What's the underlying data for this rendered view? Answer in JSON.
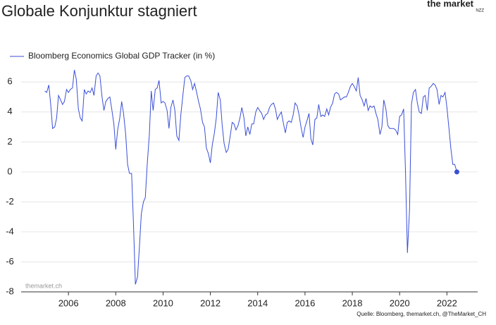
{
  "chart_data": {
    "type": "line",
    "title": "Globale Konjunktur stagniert",
    "logo": "the market",
    "logo_sub": "NZZ",
    "watermark": "themarket.ch",
    "source": "Quelle: Bloomberg, themarket.ch, @TheMarket_CH",
    "xlim": [
      2004,
      2023.3
    ],
    "xticks": [
      2006,
      2008,
      2010,
      2012,
      2014,
      2016,
      2018,
      2020,
      2022
    ],
    "ylim": [
      -8,
      7
    ],
    "yticks": [
      -8,
      -6,
      -4,
      -2,
      0,
      2,
      4,
      6
    ],
    "grid": true,
    "legend": "top-left",
    "x": [
      2005.0,
      2005.08,
      2005.17,
      2005.25,
      2005.33,
      2005.42,
      2005.5,
      2005.58,
      2005.67,
      2005.75,
      2005.83,
      2005.92,
      2006.0,
      2006.08,
      2006.17,
      2006.25,
      2006.33,
      2006.42,
      2006.5,
      2006.58,
      2006.67,
      2006.75,
      2006.83,
      2006.92,
      2007.0,
      2007.08,
      2007.17,
      2007.25,
      2007.33,
      2007.42,
      2007.5,
      2007.58,
      2007.67,
      2007.75,
      2007.83,
      2007.92,
      2008.0,
      2008.08,
      2008.17,
      2008.25,
      2008.33,
      2008.42,
      2008.5,
      2008.58,
      2008.67,
      2008.75,
      2008.83,
      2008.92,
      2009.0,
      2009.08,
      2009.17,
      2009.25,
      2009.33,
      2009.42,
      2009.5,
      2009.58,
      2009.67,
      2009.75,
      2009.83,
      2009.92,
      2010.0,
      2010.08,
      2010.17,
      2010.25,
      2010.33,
      2010.42,
      2010.5,
      2010.58,
      2010.67,
      2010.75,
      2010.83,
      2010.92,
      2011.0,
      2011.08,
      2011.17,
      2011.25,
      2011.33,
      2011.42,
      2011.5,
      2011.58,
      2011.67,
      2011.75,
      2011.83,
      2011.92,
      2012.0,
      2012.08,
      2012.17,
      2012.25,
      2012.33,
      2012.42,
      2012.5,
      2012.58,
      2012.67,
      2012.75,
      2012.83,
      2012.92,
      2013.0,
      2013.08,
      2013.17,
      2013.25,
      2013.33,
      2013.42,
      2013.5,
      2013.58,
      2013.67,
      2013.75,
      2013.83,
      2013.92,
      2014.0,
      2014.08,
      2014.17,
      2014.25,
      2014.33,
      2014.42,
      2014.5,
      2014.58,
      2014.67,
      2014.75,
      2014.83,
      2014.92,
      2015.0,
      2015.08,
      2015.17,
      2015.25,
      2015.33,
      2015.42,
      2015.5,
      2015.58,
      2015.67,
      2015.75,
      2015.83,
      2015.92,
      2016.0,
      2016.08,
      2016.17,
      2016.25,
      2016.33,
      2016.42,
      2016.5,
      2016.58,
      2016.67,
      2016.75,
      2016.83,
      2016.92,
      2017.0,
      2017.08,
      2017.17,
      2017.25,
      2017.33,
      2017.42,
      2017.5,
      2017.58,
      2017.67,
      2017.75,
      2017.83,
      2017.92,
      2018.0,
      2018.08,
      2018.17,
      2018.25,
      2018.33,
      2018.42,
      2018.5,
      2018.58,
      2018.67,
      2018.75,
      2018.83,
      2018.92,
      2019.0,
      2019.08,
      2019.17,
      2019.25,
      2019.33,
      2019.42,
      2019.5,
      2019.58,
      2019.67,
      2019.75,
      2019.83,
      2019.92,
      2020.0,
      2020.08,
      2020.17,
      2020.25,
      2020.33,
      2020.42,
      2020.5,
      2020.58,
      2020.67,
      2020.75,
      2020.83,
      2020.92,
      2021.0,
      2021.08,
      2021.17,
      2021.25,
      2021.33,
      2021.42,
      2021.5,
      2021.58,
      2021.67,
      2021.75,
      2021.83,
      2021.92,
      2022.0,
      2022.08,
      2022.17,
      2022.25,
      2022.33,
      2022.42
    ],
    "series": [
      {
        "name": "Bloomberg Economics Global GDP Tracker (in %)",
        "color": "#3a4fd8",
        "values": [
          5.4,
          5.3,
          5.8,
          4.5,
          2.9,
          3.0,
          3.6,
          5.1,
          4.8,
          4.5,
          4.7,
          5.5,
          5.3,
          5.5,
          5.6,
          6.8,
          6.2,
          4.2,
          3.6,
          3.4,
          5.5,
          5.2,
          5.4,
          5.3,
          5.6,
          5.1,
          6.4,
          6.6,
          6.4,
          5.0,
          4.1,
          4.7,
          4.9,
          5.0,
          4.2,
          3.2,
          1.5,
          2.8,
          3.6,
          4.7,
          3.9,
          2.5,
          0.5,
          -0.1,
          -0.1,
          -3.5,
          -7.5,
          -7.0,
          -5.0,
          -2.8,
          -2.0,
          -1.7,
          0.5,
          2.5,
          5.4,
          4.1,
          5.5,
          5.6,
          6.1,
          4.6,
          4.7,
          4.6,
          4.1,
          2.9,
          4.3,
          4.8,
          4.1,
          2.4,
          2.1,
          3.8,
          5.0,
          6.3,
          6.4,
          6.4,
          6.1,
          5.5,
          5.9,
          5.3,
          4.7,
          4.2,
          3.3,
          3.0,
          1.6,
          1.2,
          0.6,
          1.8,
          2.6,
          3.6,
          5.3,
          4.8,
          3.1,
          1.9,
          1.3,
          1.5,
          2.3,
          3.3,
          3.2,
          2.8,
          3.1,
          3.6,
          4.3,
          3.6,
          2.4,
          3.0,
          2.5,
          3.2,
          3.2,
          4.0,
          4.3,
          4.1,
          3.9,
          3.5,
          3.8,
          3.9,
          4.3,
          4.5,
          4.6,
          4.2,
          3.5,
          3.8,
          4.0,
          3.3,
          2.6,
          3.3,
          3.4,
          3.3,
          3.8,
          4.6,
          4.4,
          3.8,
          3.0,
          2.3,
          3.0,
          3.4,
          3.9,
          2.2,
          1.8,
          3.5,
          3.6,
          4.5,
          3.7,
          3.8,
          3.7,
          4.2,
          3.8,
          4.3,
          4.6,
          5.2,
          5.3,
          5.2,
          4.8,
          4.9,
          5.0,
          5.0,
          5.3,
          5.7,
          5.9,
          5.7,
          5.4,
          6.3,
          5.1,
          4.8,
          4.4,
          4.9,
          4.1,
          4.4,
          4.3,
          4.4,
          3.9,
          3.5,
          2.5,
          3.0,
          4.8,
          4.2,
          3.1,
          2.9,
          2.9,
          2.9,
          2.8,
          2.5,
          3.7,
          3.8,
          4.2,
          -0.1,
          -5.4,
          -2.5,
          4.5,
          5.3,
          5.5,
          4.6,
          4.0,
          3.9,
          5.0,
          5.1,
          4.1,
          5.6,
          5.7,
          5.9,
          5.8,
          5.5,
          4.5,
          5.1,
          5.0,
          5.3,
          4.3,
          3.0,
          1.5,
          0.5,
          0.5,
          0.0
        ]
      }
    ]
  }
}
